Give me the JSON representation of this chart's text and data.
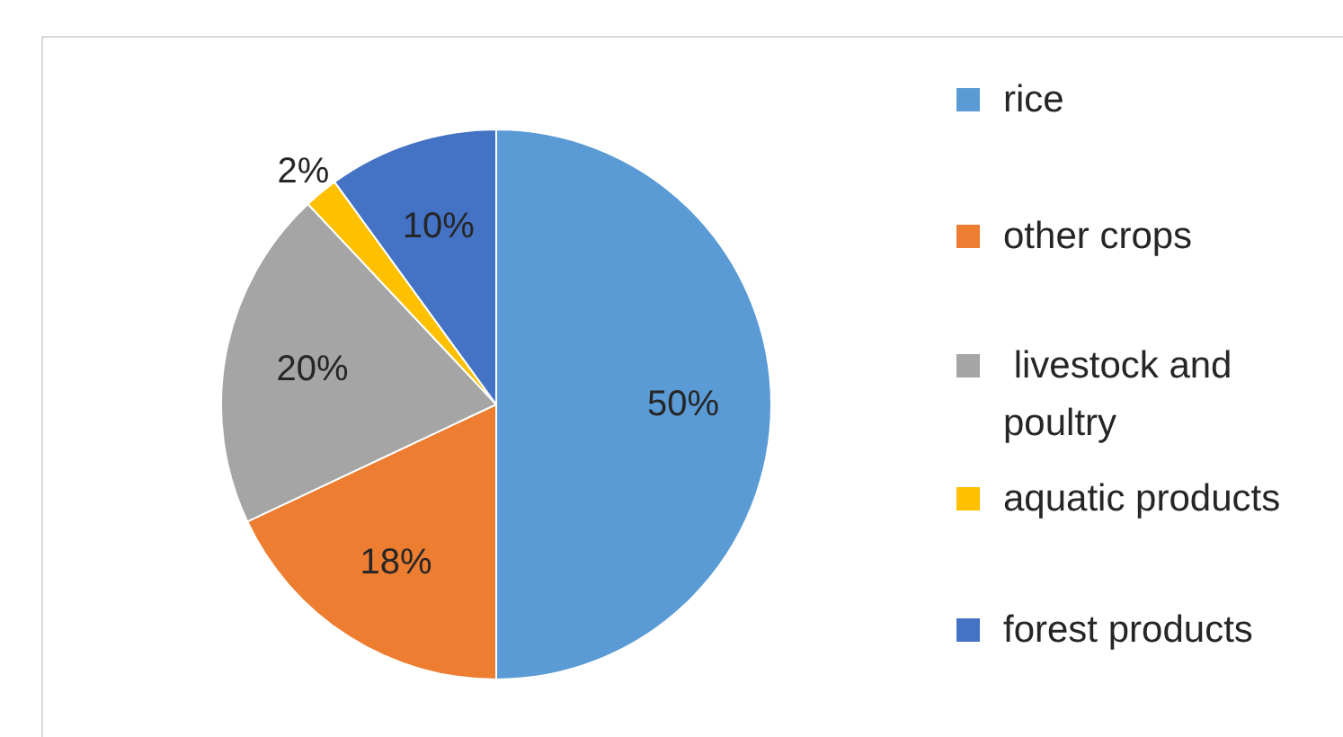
{
  "chart_data": {
    "type": "pie",
    "categories": [
      "rice",
      "other crops",
      " livestock and poultry",
      "aquatic products",
      "forest products"
    ],
    "values": [
      50,
      18,
      20,
      2,
      10
    ],
    "colors": [
      "#5b9bd5",
      "#ed7d31",
      "#a5a5a5",
      "#ffc000",
      "#4472c4"
    ],
    "value_labels": [
      "50%",
      "18%",
      "20%",
      "2%",
      "10%"
    ],
    "legend": "right"
  }
}
